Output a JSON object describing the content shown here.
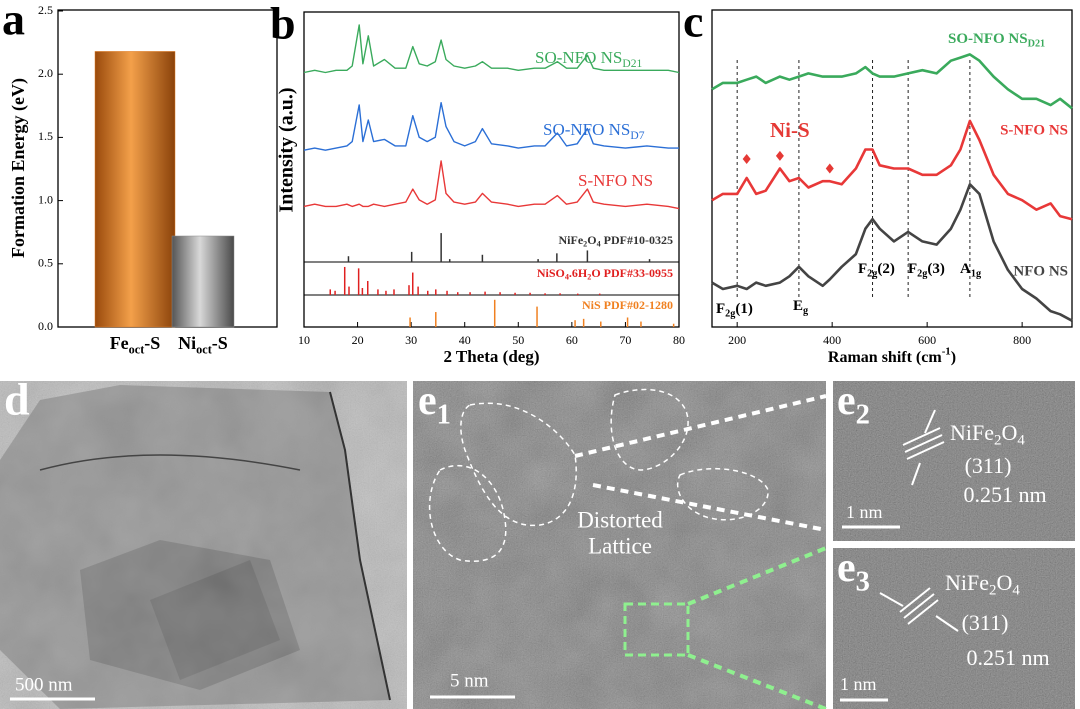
{
  "panel_a": {
    "type": "bar",
    "label": "a",
    "ylabel": "Formation Energy (eV)",
    "categories": [
      [
        "Fe",
        "oct",
        "-S"
      ],
      [
        "Ni",
        "oct",
        "-S"
      ]
    ],
    "values": [
      2.18,
      0.72
    ],
    "colors": [
      "#e07b22",
      "#8c8c8c"
    ],
    "ylim": [
      0,
      2.5
    ],
    "yticks": [
      {
        "value": 0,
        "label": "0.0"
      },
      0.5,
      {
        "value": 1,
        "label": "1.0"
      },
      1.5,
      {
        "value": 2,
        "label": "2.0"
      },
      2.5
    ]
  },
  "panel_b": {
    "type": "line",
    "label": "b",
    "xlabel": "2 Theta (deg)",
    "ylabel": "Intensity (a.u.)",
    "xlim": [
      10,
      80
    ],
    "xticks": [
      10,
      20,
      30,
      40,
      50,
      60,
      70,
      80
    ],
    "ylim": [
      0,
      100
    ],
    "x": [
      10,
      12,
      14,
      16,
      18,
      19,
      20.3,
      21,
      22,
      23,
      25,
      27,
      29,
      30.3,
      31.5,
      33,
      34.5,
      35.6,
      36.5,
      38,
      40,
      42,
      43.3,
      45,
      48,
      50,
      53,
      55,
      57.3,
      59,
      61,
      62.9,
      64,
      66,
      70,
      74,
      78,
      80
    ],
    "series": [
      {
        "name": [
          "SO-NFO NS",
          "D21"
        ],
        "color": "#3aaa5c",
        "values": [
          72,
          73,
          72,
          73,
          73,
          75,
          94,
          76,
          89,
          75,
          78,
          74,
          74,
          84,
          76,
          75,
          77,
          87,
          78,
          75,
          74,
          75,
          77,
          74,
          74,
          73,
          74,
          74,
          77,
          74,
          74,
          80,
          74,
          73,
          73,
          73,
          73,
          72
        ]
      },
      {
        "name": [
          "SO-NFO NS",
          "D7"
        ],
        "color": "#2b6fd6",
        "values": [
          36,
          37,
          36,
          37,
          38,
          40,
          57,
          40,
          50,
          40,
          41,
          38,
          38,
          52,
          42,
          40,
          42,
          58,
          47,
          40,
          38,
          40,
          46,
          39,
          38,
          37,
          38,
          38,
          44,
          38,
          39,
          46,
          39,
          38,
          37,
          38,
          37,
          37
        ]
      },
      {
        "name": "S-NFO NS",
        "color": "#e83838",
        "values": [
          10,
          11,
          10,
          10,
          11,
          10,
          11,
          10,
          10,
          11,
          10,
          11,
          12,
          18,
          13,
          11,
          13,
          31,
          16,
          12,
          11,
          12,
          16,
          12,
          11,
          10,
          11,
          11,
          15,
          11,
          12,
          18,
          12,
          11,
          10,
          11,
          10,
          9
        ]
      }
    ],
    "references": [
      {
        "name": [
          "NiFe",
          "2",
          "O",
          "4",
          " PDF#10-0325"
        ],
        "color": "#333333",
        "ylim": [
          0,
          100
        ],
        "positions": [
          18.3,
          30.1,
          35.6,
          37.2,
          43.3,
          53.7,
          57.2,
          62.9,
          74.5
        ],
        "intensities": [
          20,
          35,
          100,
          10,
          25,
          10,
          30,
          40,
          10
        ]
      },
      {
        "name": [
          "NiSO",
          "4",
          ".6H",
          "2",
          "O PDF#33-0955"
        ],
        "color": "#e02020",
        "ylim": [
          0,
          100
        ],
        "positions": [
          14.9,
          15.8,
          17.6,
          18.4,
          20.2,
          20.9,
          21.9,
          23.8,
          25.3,
          26.8,
          29.6,
          30.3,
          31.3,
          33.1,
          34.6,
          36.7,
          38.7,
          41.0,
          43.8,
          46.6,
          49.4,
          52.2,
          55.0,
          57.8,
          61.1,
          65.2
        ],
        "intensities": [
          20,
          15,
          100,
          30,
          95,
          25,
          50,
          20,
          15,
          20,
          35,
          80,
          30,
          15,
          20,
          15,
          10,
          10,
          12,
          10,
          8,
          8,
          6,
          6,
          5,
          5
        ]
      },
      {
        "name": "NiS PDF#02-1280",
        "color": "#f08020",
        "ylim": [
          0,
          100
        ],
        "positions": [
          29.8,
          34.6,
          45.6,
          53.5,
          60.6,
          62.2,
          65.4,
          70.4,
          72.9,
          79.0
        ],
        "intensities": [
          35,
          55,
          100,
          75,
          25,
          30,
          20,
          35,
          20,
          12
        ]
      }
    ]
  },
  "panel_c": {
    "type": "line",
    "label": "c",
    "xlabel": [
      "Raman shift (cm",
      "-1",
      ")"
    ],
    "xlim": [
      147,
      905
    ],
    "xticks": [
      200,
      400,
      600,
      800
    ],
    "ylim": [
      0,
      100
    ],
    "x": [
      147,
      170,
      200,
      220,
      240,
      260,
      290,
      310,
      330,
      350,
      380,
      395,
      420,
      450,
      470,
      485,
      500,
      530,
      560,
      590,
      620,
      650,
      670,
      690,
      710,
      740,
      770,
      800,
      830,
      860,
      880,
      905
    ],
    "series": [
      {
        "name": [
          "SO-NFO NS",
          "D21"
        ],
        "color": "#3aaa5c",
        "values": [
          75,
          77,
          77,
          78,
          79,
          77,
          79,
          78,
          79,
          80,
          79,
          79,
          79,
          80,
          82,
          80,
          79,
          79,
          80,
          81,
          80,
          84,
          85,
          86,
          84,
          79,
          75,
          72,
          72,
          70,
          72,
          69
        ]
      },
      {
        "name": "S-NFO NS",
        "color": "#e83838",
        "values": [
          40,
          42,
          42,
          47,
          42,
          43,
          50,
          46,
          47,
          44,
          46,
          46,
          45,
          50,
          56,
          56,
          51,
          50,
          50,
          48,
          48,
          51,
          56,
          65,
          59,
          48,
          42,
          40,
          37,
          39,
          35,
          34
        ]
      },
      {
        "name": "NFO NS",
        "color": "#444444",
        "values": [
          14,
          12,
          13,
          12,
          14,
          13,
          14,
          16,
          19,
          16,
          13,
          15,
          19,
          23,
          31,
          34,
          31,
          27,
          30,
          27,
          26,
          31,
          37,
          45,
          42,
          27,
          18,
          12,
          9,
          5,
          4,
          2
        ]
      }
    ],
    "modes": {
      "positions": [
        200,
        330,
        485,
        560,
        690
      ],
      "labels": [
        [
          "F",
          "2g",
          "(1)"
        ],
        [
          "E",
          "g"
        ],
        [
          "F",
          "2g",
          "(2)"
        ],
        [
          "F",
          "2g",
          "(3)"
        ],
        [
          "A",
          "1g"
        ]
      ]
    },
    "markers": {
      "name": "Ni-S",
      "color": "#e53935",
      "x": [
        220,
        290,
        395
      ],
      "values": [
        53,
        54,
        50
      ]
    }
  },
  "panel_d": {
    "label": "d",
    "scale_bar": "500 nm"
  },
  "panel_e1": {
    "label": [
      "e",
      "1"
    ],
    "annotation": [
      "Distorted",
      "Lattice"
    ],
    "scale_bar": "5 nm"
  },
  "panel_e2": {
    "label": [
      "e",
      "2"
    ],
    "phase": [
      "NiFe",
      "2",
      "O",
      "4"
    ],
    "plane": "(311)",
    "spacing": "0.251 nm",
    "scale_bar": "1 nm"
  },
  "panel_e3": {
    "label": [
      "e",
      "3"
    ],
    "phase": [
      "NiFe",
      "2",
      "O",
      "4"
    ],
    "plane": "(311)",
    "spacing": "0.251 nm",
    "scale_bar": "1 nm"
  }
}
